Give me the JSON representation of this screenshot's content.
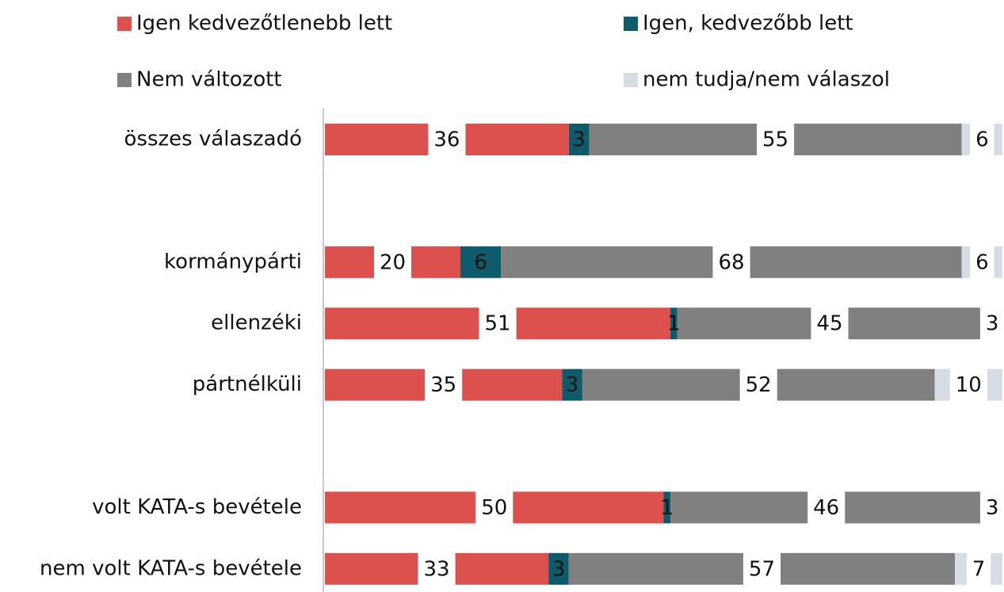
{
  "chart_data": {
    "type": "stacked-bar-horizontal",
    "categories": [
      "összes válaszadó",
      null,
      "kormánypárti",
      "ellenzéki",
      "pártnélküli",
      null,
      "volt KATA-s bevétele",
      "nem volt KATA-s bevétele"
    ],
    "series": [
      {
        "name": "Igen kedvezőtlenebb lett",
        "color": "#dc514e",
        "values": [
          36,
          null,
          20,
          51,
          35,
          null,
          50,
          33
        ]
      },
      {
        "name": "Igen, kedvezőbb lett",
        "color": "#0e5c6b",
        "values": [
          3,
          null,
          6,
          1,
          3,
          null,
          1,
          3
        ]
      },
      {
        "name": "Nem változott",
        "color": "#808080",
        "values": [
          55,
          null,
          68,
          45,
          52,
          null,
          46,
          57
        ]
      },
      {
        "name": "nem tudja/nem válaszol",
        "color": "#d6dce4",
        "values": [
          6,
          null,
          6,
          3,
          10,
          null,
          3,
          7
        ]
      }
    ],
    "xlim": [
      0,
      100
    ]
  }
}
